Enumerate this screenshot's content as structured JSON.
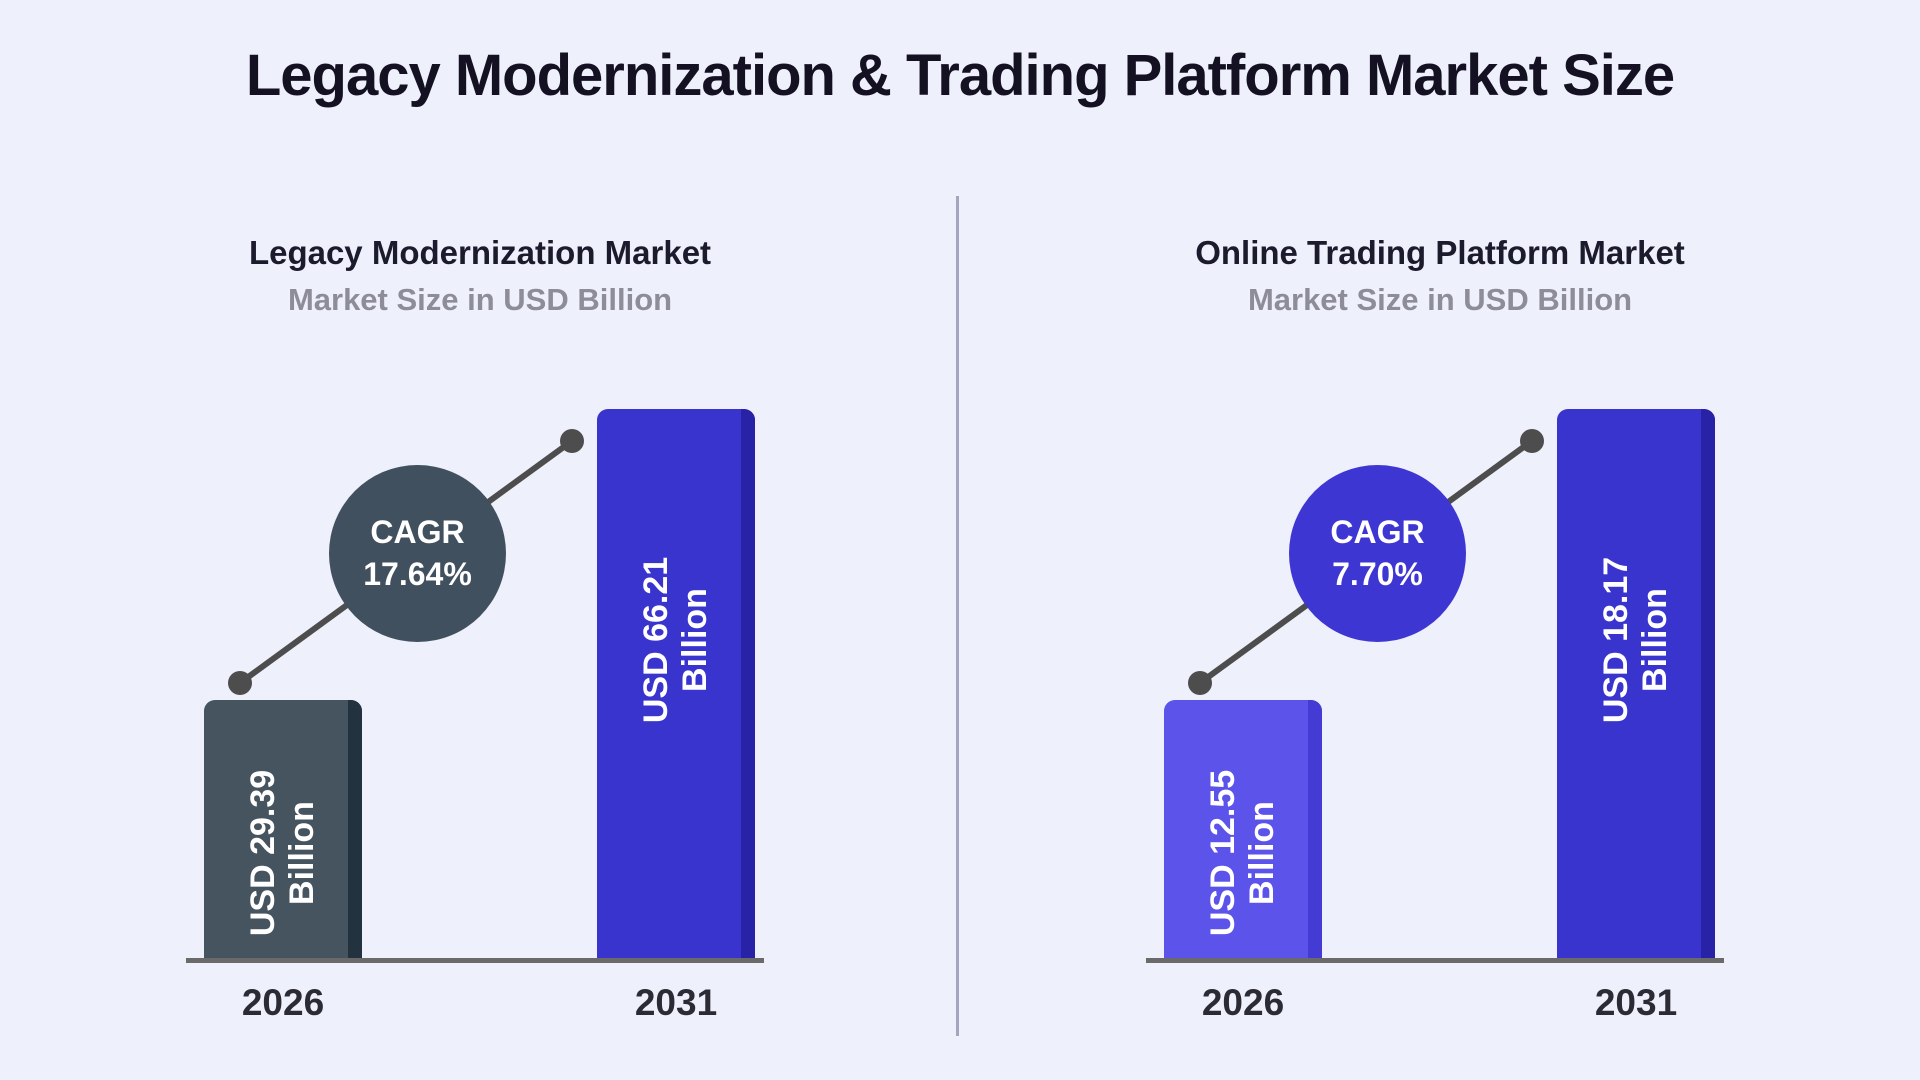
{
  "page": {
    "title": "Legacy Modernization & Trading Platform Market Size",
    "background": "#eef0fb",
    "title_color": "#141123",
    "divider_color": "#a4a6c0",
    "axis_color": "#6a6a6a",
    "connector_color": "#4d4d4d"
  },
  "charts": [
    {
      "title": "Legacy Modernization Market",
      "subtitle": "Market Size in USD Billion",
      "cagr": {
        "label": "CAGR",
        "value": "17.64%",
        "circle_color": "#41505e"
      },
      "bars": [
        {
          "year": "2026",
          "value_line1": "USD 29.39",
          "value_line2": "Billion",
          "color": "#46545f",
          "edge_color": "#22323e"
        },
        {
          "year": "2031",
          "value_line1": "USD 66.21",
          "value_line2": "Billion",
          "color": "#3a34cf",
          "edge_color": "#2722a6"
        }
      ]
    },
    {
      "title": "Online Trading Platform Market",
      "subtitle": "Market Size in USD Billion",
      "cagr": {
        "label": "CAGR",
        "value": "7.70%",
        "circle_color": "#3d36d2"
      },
      "bars": [
        {
          "year": "2026",
          "value_line1": "USD 12.55",
          "value_line2": "Billion",
          "color": "#5b53ea",
          "edge_color": "#443bd4"
        },
        {
          "year": "2031",
          "value_line1": "USD 18.17",
          "value_line2": "Billion",
          "color": "#3a34cf",
          "edge_color": "#2722a6"
        }
      ]
    }
  ],
  "chart_data": [
    {
      "type": "bar",
      "title": "Legacy Modernization Market",
      "subtitle": "Market Size in USD Billion",
      "categories": [
        "2026",
        "2031"
      ],
      "values": [
        29.39,
        66.21
      ],
      "unit": "USD Billion",
      "annotations": [
        "CAGR 17.64%"
      ],
      "xlabel": "",
      "ylabel": "Market Size in USD Billion",
      "grid": false,
      "legend": "none"
    },
    {
      "type": "bar",
      "title": "Online Trading Platform Market",
      "subtitle": "Market Size in USD Billion",
      "categories": [
        "2026",
        "2031"
      ],
      "values": [
        12.55,
        18.17
      ],
      "unit": "USD Billion",
      "annotations": [
        "CAGR 7.70%"
      ],
      "xlabel": "",
      "ylabel": "Market Size in USD Billion",
      "grid": false,
      "legend": "none"
    }
  ]
}
